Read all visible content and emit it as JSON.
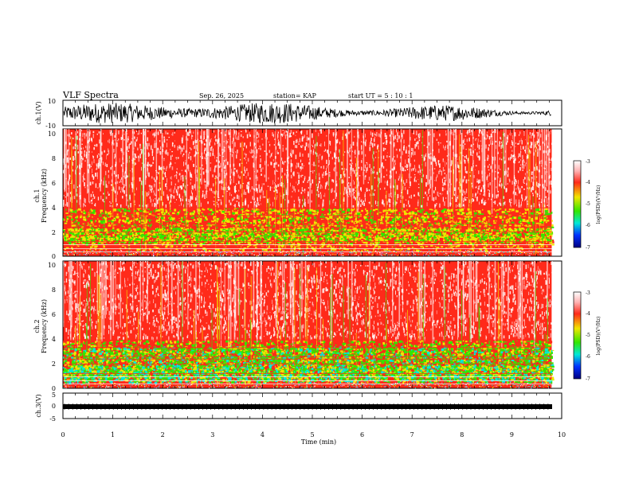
{
  "header": {
    "title": "VLF Spectra",
    "date": "Sep. 26, 2025",
    "station": "station= KAP",
    "start": "start  UT =   5 : 10 : 1"
  },
  "chart_data": [
    {
      "type": "line",
      "name": "ch1-waveform",
      "ylabel": "ch.1(V)",
      "ylim": [
        -10,
        10
      ],
      "yticks": [
        "10",
        "-10"
      ],
      "xlim": [
        0,
        10
      ]
    },
    {
      "type": "heatmap",
      "name": "ch1-spectrogram",
      "ylabel": "ch.1\nFrequency (kHz)",
      "ylabel_lines": [
        "ch.1",
        "Frequency (kHz)"
      ],
      "ylim": [
        0,
        10
      ],
      "yticks": [
        "0",
        "2",
        "4",
        "6",
        "8",
        "10"
      ],
      "xlim": [
        0,
        9.8
      ],
      "colorbar": {
        "label": "log(PSD)(V²/Hz)",
        "ticks": [
          "-3",
          "-4",
          "-5",
          "-6",
          "-7"
        ],
        "range": [
          -7,
          -3
        ]
      }
    },
    {
      "type": "heatmap",
      "name": "ch2-spectrogram",
      "ylabel_lines": [
        "ch.2",
        "Frequency (kHz)"
      ],
      "ylim": [
        0,
        10
      ],
      "yticks": [
        "0",
        "2",
        "4",
        "6",
        "8",
        "10"
      ],
      "xlim": [
        0,
        9.8
      ],
      "colorbar": {
        "label": "log(PSD)(V²/Hz)",
        "ticks": [
          "-3",
          "-4",
          "-5",
          "-6",
          "-7"
        ],
        "range": [
          -7,
          -3
        ]
      }
    },
    {
      "type": "line",
      "name": "ch3-waveform",
      "ylabel": "ch.3(V)",
      "ylim": [
        -5,
        5
      ],
      "yticks": [
        "5",
        "0",
        "-5"
      ],
      "xlim": [
        0,
        10
      ],
      "xlabel": "Time (min)",
      "xticks": [
        "0",
        "1",
        "2",
        "3",
        "4",
        "5",
        "6",
        "7",
        "8",
        "9",
        "10"
      ]
    }
  ],
  "colors": {
    "white": "#ffffff",
    "red": "#ff2a1a",
    "yellow": "#f0e600",
    "green": "#33e600",
    "cyan": "#00e8d8",
    "blue": "#0030ff",
    "navy": "#000080"
  }
}
